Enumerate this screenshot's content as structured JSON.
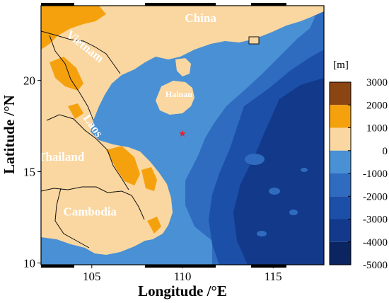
{
  "map": {
    "xlabel": "Longitude /°E",
    "ylabel": "Latitude /°N",
    "x_ticks": [
      "105",
      "110",
      "115"
    ],
    "y_ticks": [
      "10",
      "15",
      "20"
    ],
    "extent": {
      "lon": [
        102.2,
        117.8
      ],
      "lat": [
        9.9,
        24.1
      ]
    },
    "places": [
      {
        "name": "China",
        "lon": 111.0,
        "lat": 23.2
      },
      {
        "name": "Vietnam",
        "lon": 104.5,
        "lat": 21.7
      },
      {
        "name": "Hainan",
        "lon": 109.8,
        "lat": 19.1
      },
      {
        "name": "Laos",
        "lon": 104.9,
        "lat": 17.4
      },
      {
        "name": "Thailand",
        "lon": 103.3,
        "lat": 15.6
      },
      {
        "name": "Cambodia",
        "lon": 104.9,
        "lat": 12.6
      }
    ],
    "marker": {
      "symbol": "star",
      "lon": 110.0,
      "lat": 17.1,
      "color": "#e8202a"
    }
  },
  "colorbar": {
    "unit": "[m]",
    "labels": [
      "3000",
      "2000",
      "1000",
      "0",
      "-1000",
      "-2000",
      "-3000",
      "-4000",
      "-5000"
    ],
    "bands": [
      {
        "from": 2000,
        "to": 3000,
        "color": "#8b4513"
      },
      {
        "from": 1000,
        "to": 2000,
        "color": "#f5a10e"
      },
      {
        "from": 0,
        "to": 1000,
        "color": "#fad7a0"
      },
      {
        "from": -1000,
        "to": 0,
        "color": "#4a90d4"
      },
      {
        "from": -2000,
        "to": -1000,
        "color": "#2f6cc0"
      },
      {
        "from": -3000,
        "to": -2000,
        "color": "#1b4fa8"
      },
      {
        "from": -4000,
        "to": -3000,
        "color": "#12398a"
      },
      {
        "from": -5000,
        "to": -4000,
        "color": "#0b2560"
      }
    ]
  },
  "colors": {
    "land": "#fad7a0",
    "highland": "#f5a10e",
    "shelf": "#4a90d4",
    "slope": "#2f6cc0",
    "deep": "#1b4fa8",
    "abyss": "#12398a",
    "border": "#111111"
  }
}
